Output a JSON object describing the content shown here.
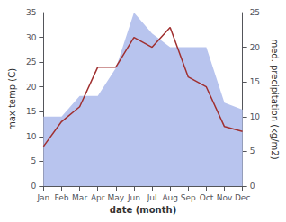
{
  "chart_data": {
    "type": "line",
    "categories": [
      "Jan",
      "Feb",
      "Mar",
      "Apr",
      "May",
      "Jun",
      "Jul",
      "Aug",
      "Sep",
      "Oct",
      "Nov",
      "Dec"
    ],
    "series": [
      {
        "type": "area",
        "color": "#b8c4ee",
        "values": [
          10,
          10,
          13,
          13,
          17,
          25,
          22,
          20,
          20,
          20,
          12,
          11
        ],
        "axis": "y2"
      },
      {
        "type": "line",
        "color": "#a03030",
        "values": [
          8,
          13,
          16,
          24,
          24,
          30,
          28,
          32,
          22,
          20,
          12,
          11
        ]
      }
    ],
    "xlabel": "date (month)",
    "ylabel": "max temp (C)",
    "y2label": "med. precipitation (kg/m2)",
    "ylim": [
      0,
      35
    ],
    "yticks": [
      0,
      5,
      10,
      15,
      20,
      25,
      30,
      35
    ],
    "y2lim": [
      0,
      25
    ],
    "y2ticks": [
      0,
      5,
      10,
      15,
      20,
      25
    ],
    "grid": false
  }
}
